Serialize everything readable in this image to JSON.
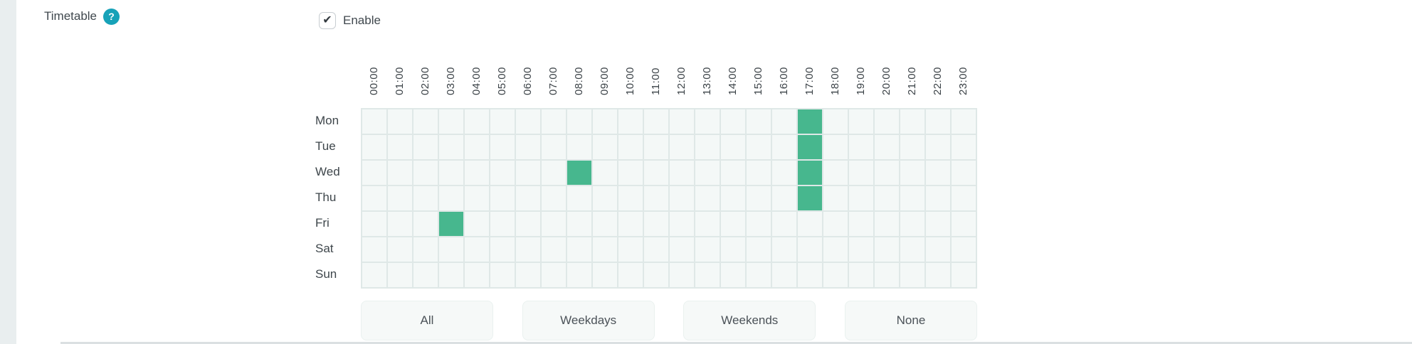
{
  "page": {
    "background": "#ffffff",
    "left_rail_color": "#e9eeef"
  },
  "field": {
    "label": "Timetable",
    "help_icon_glyph": "?",
    "help_icon_color": "#17a2b8"
  },
  "enable": {
    "label": "Enable",
    "checked": true,
    "check_glyph": "✔"
  },
  "timetable": {
    "hours": [
      "00:00",
      "01:00",
      "02:00",
      "03:00",
      "04:00",
      "05:00",
      "06:00",
      "07:00",
      "08:00",
      "09:00",
      "10:00",
      "11:00",
      "12:00",
      "13:00",
      "14:00",
      "15:00",
      "16:00",
      "17:00",
      "18:00",
      "19:00",
      "20:00",
      "21:00",
      "22:00",
      "23:00"
    ],
    "days": [
      "Mon",
      "Tue",
      "Wed",
      "Thu",
      "Fri",
      "Sat",
      "Sun"
    ],
    "selected": {
      "Mon": [
        17
      ],
      "Tue": [
        17
      ],
      "Wed": [
        8,
        17
      ],
      "Thu": [
        17
      ],
      "Fri": [
        3
      ],
      "Sat": [],
      "Sun": []
    },
    "colors": {
      "selected_cell": "#47b78e",
      "cell_background": "#f4f8f7",
      "cell_border": "#dfe8e7"
    }
  },
  "actions": {
    "all_label": "All",
    "weekdays_label": "Weekdays",
    "weekends_label": "Weekends",
    "none_label": "None"
  }
}
